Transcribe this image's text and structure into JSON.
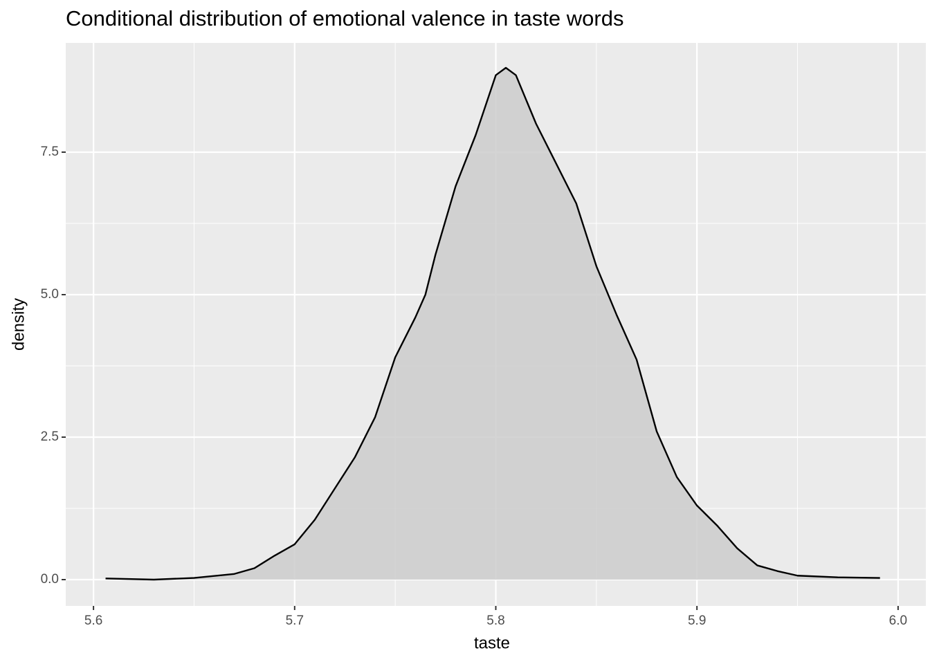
{
  "chart_data": {
    "type": "density",
    "title": "Conditional distribution of emotional valence in taste words",
    "x_label": "taste",
    "y_label": "density",
    "x": [
      5.606,
      5.63,
      5.65,
      5.67,
      5.68,
      5.69,
      5.7,
      5.71,
      5.72,
      5.73,
      5.74,
      5.75,
      5.76,
      5.765,
      5.77,
      5.78,
      5.79,
      5.8,
      5.805,
      5.81,
      5.82,
      5.83,
      5.84,
      5.85,
      5.86,
      5.87,
      5.88,
      5.89,
      5.9,
      5.91,
      5.92,
      5.93,
      5.94,
      5.95,
      5.97,
      5.991
    ],
    "values": [
      0.02,
      0.0,
      0.03,
      0.1,
      0.2,
      0.42,
      0.62,
      1.05,
      1.6,
      2.15,
      2.85,
      3.9,
      4.6,
      5.0,
      5.7,
      6.9,
      7.8,
      8.85,
      8.98,
      8.85,
      8.0,
      7.3,
      6.6,
      5.5,
      4.65,
      3.86,
      2.6,
      1.8,
      1.3,
      0.95,
      0.55,
      0.25,
      0.15,
      0.07,
      0.04,
      0.03
    ],
    "fill": "#cccccc",
    "color": "#000000",
    "xlim": [
      5.5862,
      6.0138
    ],
    "ylim": [
      -0.461,
      9.417
    ],
    "xticks": [
      {
        "value": 5.6,
        "label": "5.6"
      },
      {
        "value": 5.7,
        "label": "5.7"
      },
      {
        "value": 5.8,
        "label": "5.8"
      },
      {
        "value": 5.9,
        "label": "5.9"
      },
      {
        "value": 6.0,
        "label": "6.0"
      }
    ],
    "yticks": [
      {
        "value": 0,
        "label": "0.0"
      },
      2.5,
      {
        "value": 5,
        "label": "5.0"
      },
      7.5
    ],
    "grid": true,
    "minor_grid": true
  }
}
